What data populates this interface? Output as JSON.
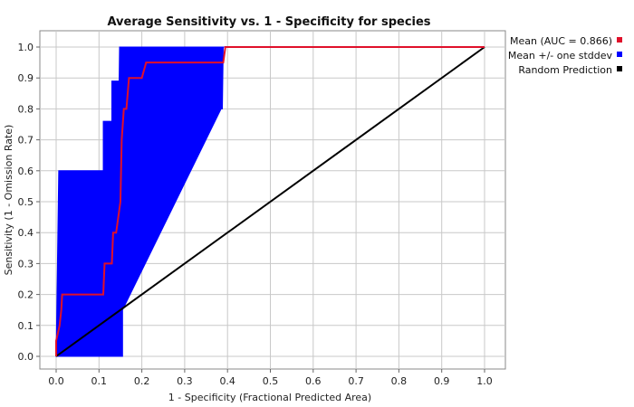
{
  "chart_data": {
    "type": "line",
    "title": "Average Sensitivity vs. 1 - Specificity for species",
    "xlabel": "1 - Specificity (Fractional Predicted Area)",
    "ylabel": "Sensitivity (1 - Omission Rate)",
    "xlim": [
      0,
      1
    ],
    "ylim": [
      0,
      1
    ],
    "xticks": [
      "0.0",
      "0.1",
      "0.2",
      "0.3",
      "0.4",
      "0.5",
      "0.6",
      "0.7",
      "0.8",
      "0.9",
      "1.0"
    ],
    "yticks": [
      "0.0",
      "0.1",
      "0.2",
      "0.3",
      "0.4",
      "0.5",
      "0.6",
      "0.7",
      "0.8",
      "0.9",
      "1.0"
    ],
    "grid": true,
    "legend_position": "right",
    "colors": {
      "mean": "#e0102a",
      "band": "#0000ff",
      "random": "#000000",
      "grid": "#c8c8c8"
    },
    "series": [
      {
        "name": "Mean (AUC = 0.866)",
        "x": [
          0.0,
          0.0,
          0.008,
          0.012,
          0.014,
          0.11,
          0.113,
          0.13,
          0.133,
          0.14,
          0.15,
          0.153,
          0.158,
          0.164,
          0.17,
          0.174,
          0.2,
          0.21,
          0.39,
          0.395,
          0.4,
          1.0
        ],
        "y": [
          0.0,
          0.05,
          0.1,
          0.15,
          0.2,
          0.2,
          0.3,
          0.3,
          0.4,
          0.4,
          0.5,
          0.7,
          0.8,
          0.8,
          0.9,
          0.9,
          0.9,
          0.95,
          0.95,
          1.0,
          1.0,
          1.0
        ]
      },
      {
        "name": "Mean +/- one stddev",
        "lower_x": [
          0.0,
          0.155,
          0.155,
          0.385,
          0.388,
          0.39
        ],
        "lower_y": [
          0.0,
          0.0,
          0.15,
          0.8,
          0.8,
          1.0
        ],
        "upper_x": [
          0.0,
          0.004,
          0.006,
          0.1,
          0.11,
          0.11,
          0.13,
          0.13,
          0.147,
          0.148,
          1.0
        ],
        "upper_y": [
          0.0,
          0.4,
          0.6,
          0.6,
          0.6,
          0.76,
          0.76,
          0.89,
          0.89,
          1.0,
          1.0
        ]
      },
      {
        "name": "Random Prediction",
        "x": [
          0.0,
          1.0
        ],
        "y": [
          0.0,
          1.0
        ]
      }
    ]
  }
}
